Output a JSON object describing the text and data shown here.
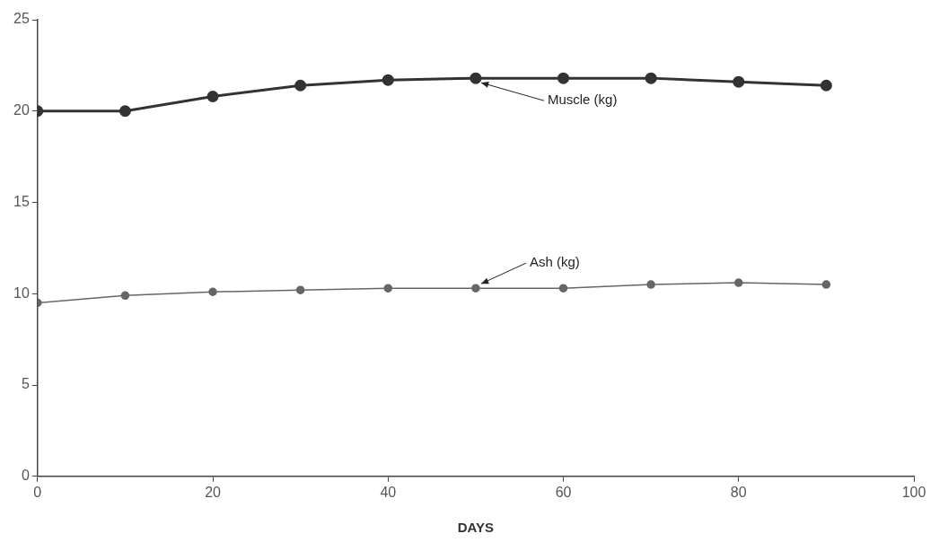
{
  "chart_data": {
    "type": "line",
    "xlabel": "DAYS",
    "x": [
      0,
      10,
      20,
      30,
      40,
      50,
      60,
      70,
      80,
      90
    ],
    "series": [
      {
        "color": "#333333",
        "values": [
          20.0,
          20.0,
          20.8,
          21.4,
          21.7,
          21.8,
          21.8,
          21.8,
          21.6,
          21.4
        ]
      },
      {
        "color": "#666666",
        "values": [
          9.5,
          9.9,
          10.1,
          10.2,
          10.3,
          10.3,
          10.3,
          10.5,
          10.6,
          10.5
        ]
      }
    ],
    "xlim": [
      0,
      100
    ],
    "xticks": [
      0,
      20,
      40,
      60,
      80,
      100
    ],
    "ylim": [
      0,
      25
    ],
    "yticks": [
      0,
      5,
      10,
      15,
      20,
      25
    ],
    "grid": false,
    "legend": false,
    "marker": "circle",
    "line_style": "solid",
    "annotations": [
      {
        "text": "Muscle (kg)",
        "x": 50,
        "y": 21.8
      },
      {
        "text": "Ash (kg)",
        "x": 50,
        "y": 10.3
      }
    ]
  }
}
